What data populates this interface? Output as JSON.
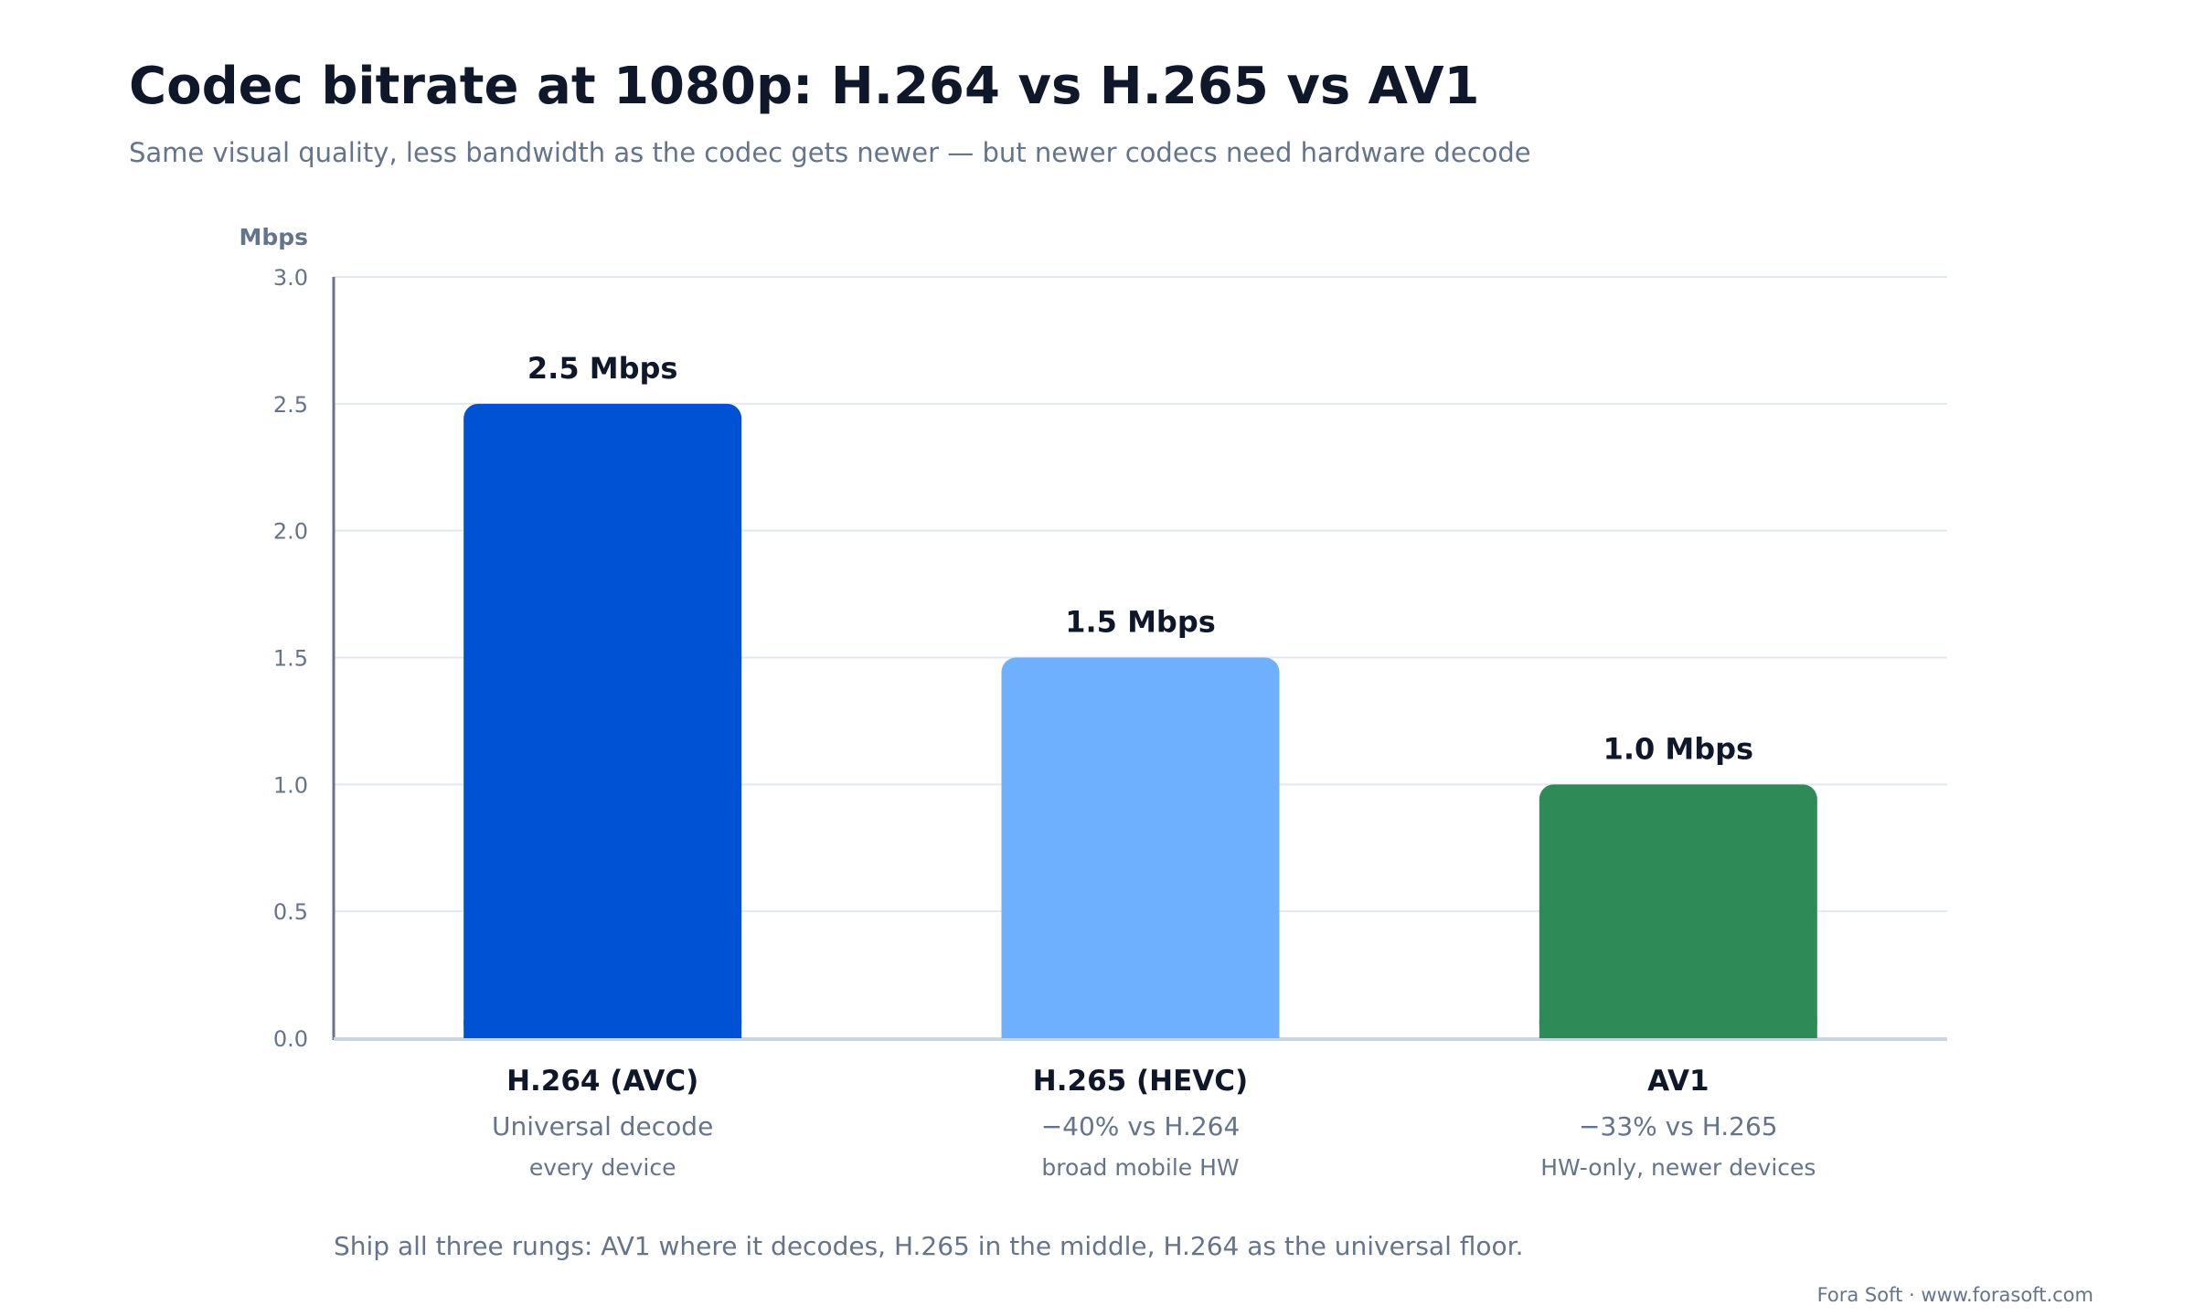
{
  "title": "Codec bitrate at 1080p: H.264 vs H.265 vs AV1",
  "subtitle": "Same visual quality, less bandwidth as the codec gets newer — but newer codecs need hardware decode",
  "footnote": "Ship all three rungs: AV1 where it decodes, H.265 in the middle, H.264 as the universal floor.",
  "credit": "Fora Soft · www.forasoft.com",
  "chart_data": {
    "type": "bar",
    "ylabel": "Mbps",
    "ylim": [
      0,
      3.0
    ],
    "yticks": [
      "0.0",
      "0.5",
      "1.0",
      "1.5",
      "2.0",
      "2.5",
      "3.0"
    ],
    "grid": true,
    "categories": [
      "H.264 (AVC)",
      "H.265 (HEVC)",
      "AV1"
    ],
    "values": [
      2.5,
      1.5,
      1.0
    ],
    "value_labels": [
      "2.5 Mbps",
      "1.5 Mbps",
      "1.0 Mbps"
    ],
    "category_notes": [
      "Universal decode",
      "−40% vs H.264",
      "−33% vs H.265"
    ],
    "category_subnotes": [
      "every device",
      "broad mobile HW",
      "HW-only, newer devices"
    ],
    "colors": [
      "#0052d4",
      "#6eb0fd",
      "#2e8b57"
    ]
  }
}
